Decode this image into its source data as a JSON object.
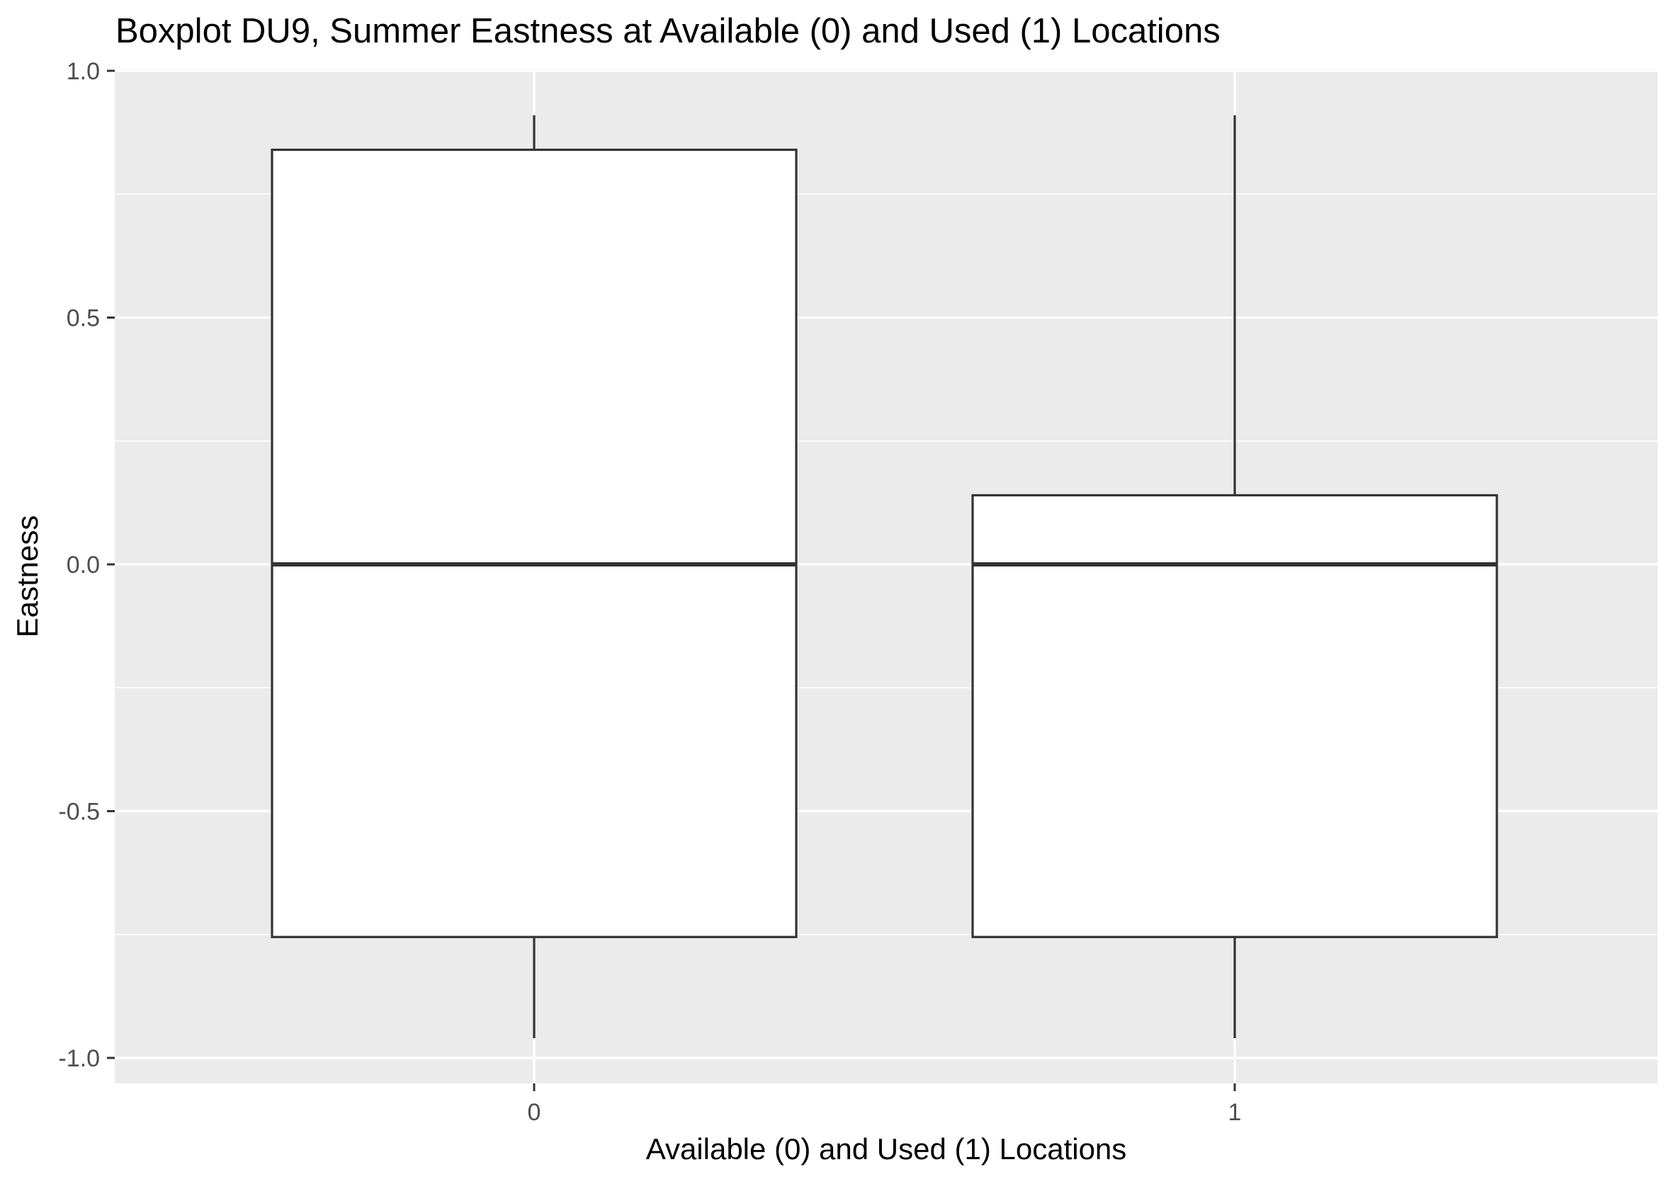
{
  "chart_data": {
    "type": "boxplot",
    "title": "Boxplot DU9, Summer Eastness at Available (0) and Used (1) Locations",
    "xlabel": "Available (0) and Used (1) Locations",
    "ylabel": "Eastness",
    "categories": [
      "0",
      "1"
    ],
    "boxes": [
      {
        "category": "0",
        "lower_whisker": -0.96,
        "q1": -0.755,
        "median": 0.0,
        "q3": 0.84,
        "upper_whisker": 0.91
      },
      {
        "category": "1",
        "lower_whisker": -0.96,
        "q1": -0.755,
        "median": 0.0,
        "q3": 0.14,
        "upper_whisker": 0.91
      }
    ],
    "ylim": [
      -1.05,
      1.0
    ],
    "yticks": [
      -1.0,
      -0.5,
      0.0,
      0.5,
      1.0
    ],
    "ytick_labels": [
      "-1.0",
      "-0.5",
      "0.0",
      "0.5",
      "1.0"
    ],
    "grid": true,
    "legend": "none",
    "colors": {
      "panel_background": "#ebebeb",
      "grid_line": "#ffffff",
      "box_fill": "#ffffff",
      "box_stroke": "#333333",
      "tick_label": "#4d4d4d",
      "text": "#000000"
    }
  }
}
